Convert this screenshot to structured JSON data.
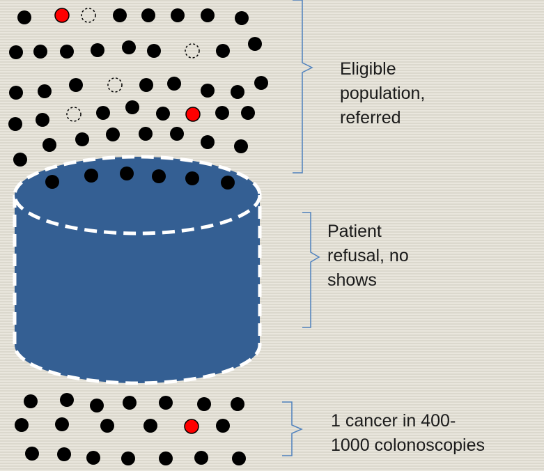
{
  "labels": {
    "eligible": "Eligible\npopulation,\nreferred",
    "refusal": "Patient\nrefusal, no\nshows",
    "cancer": "1 cancer in 400-\n1000 colonoscopies"
  },
  "colors": {
    "background": "#e4e1d7",
    "dot": "#000000",
    "cancer_dot": "#ff0000",
    "cylinder_fill": "#345f93",
    "cylinder_outline": "#ffffff",
    "bracket": "#4f81bd"
  },
  "legend_icons": [
    "filled-dot-icon",
    "cancer-dot-icon",
    "dashed-empty-dot-icon"
  ],
  "groups": [
    {
      "name": "eligible",
      "dots_total": 52,
      "cancer_dots": 2,
      "empty_dots": 4
    },
    {
      "name": "refusal",
      "dots_total": 0
    },
    {
      "name": "colonoscopy",
      "dots_total": 20,
      "cancer_dots": 1,
      "empty_dots": 0
    }
  ]
}
